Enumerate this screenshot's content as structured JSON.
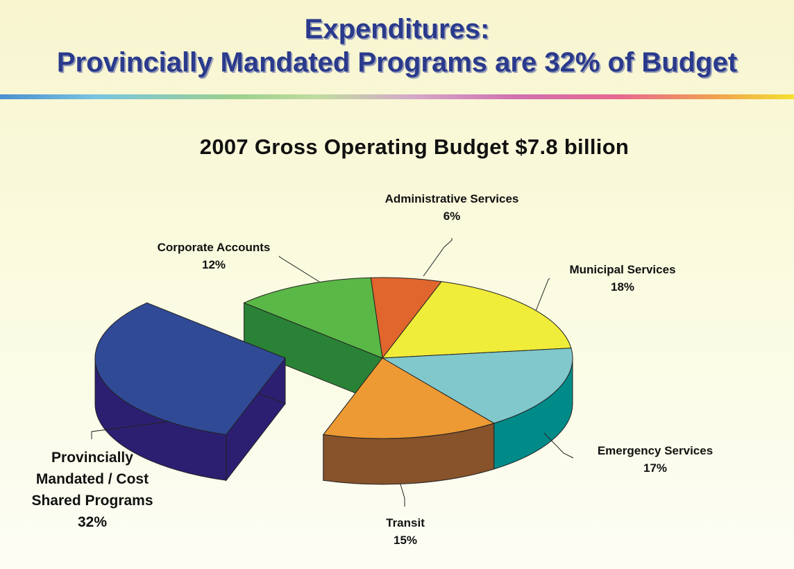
{
  "header": {
    "title_line1": "Expenditures:",
    "title_line2": "Provincially Mandated Programs are 32% of Budget"
  },
  "chart_data": {
    "type": "pie",
    "style": "3d-exploded",
    "title": "2007 Gross Operating Budget $7.8 billion",
    "slices": [
      {
        "label": "Administrative Services",
        "pct_text": "6%",
        "value": 6,
        "color": "#e0662e",
        "side_color": "#a4451c"
      },
      {
        "label": "Municipal Services",
        "pct_text": "18%",
        "value": 18,
        "color": "#f0ec3a",
        "side_color": "#b8b018"
      },
      {
        "label": "Emergency Services",
        "pct_text": "17%",
        "value": 17,
        "color": "#80c8cc",
        "side_color": "#008a88"
      },
      {
        "label": "Transit",
        "pct_text": "15%",
        "value": 15,
        "color": "#ee9a34",
        "side_color": "#88522a"
      },
      {
        "label": "Provincially Mandated / Cost Shared Programs",
        "label_lines": [
          "Provincially",
          "Mandated / Cost",
          "Shared Programs"
        ],
        "pct_text": "32%",
        "value": 32,
        "color": "#304a96",
        "side_color": "#2c1f72",
        "exploded": true
      },
      {
        "label": "Corporate Accounts",
        "pct_text": "12%",
        "value": 12,
        "color": "#5ab846",
        "side_color": "#2a8236"
      }
    ]
  }
}
